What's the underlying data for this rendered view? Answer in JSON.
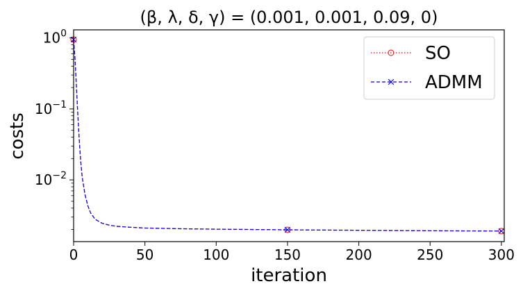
{
  "chart_data": {
    "type": "line",
    "title": "(β, λ, δ, γ) = (0.001, 0.001, 0.09, 0)",
    "xlabel": "iteration",
    "ylabel": "costs",
    "xlim": [
      0,
      302
    ],
    "ylim": [
      0.00135,
      1.3
    ],
    "yscale": "log",
    "grid": false,
    "legend_position": "top-right",
    "x_ticks": [
      0,
      50,
      100,
      150,
      200,
      250,
      300
    ],
    "x_tick_labels": [
      "0",
      "50",
      "100",
      "150",
      "200",
      "250",
      "300"
    ],
    "y_ticks": [
      1,
      0.1,
      0.01
    ],
    "y_tick_labels": [
      {
        "base": "10",
        "exp": "0"
      },
      {
        "base": "10",
        "exp": "−1"
      },
      {
        "base": "10",
        "exp": "−2"
      }
    ],
    "series": [
      {
        "name": "SO",
        "color": "#ff0000",
        "line_style": "dotted",
        "marker": "circle",
        "x": [
          0,
          1,
          2,
          3,
          4,
          5,
          6,
          8,
          10,
          12,
          15,
          20,
          25,
          30,
          40,
          50,
          75,
          100,
          150,
          200,
          250,
          300
        ],
        "y": [
          0.95,
          0.5,
          0.2,
          0.08,
          0.035,
          0.018,
          0.011,
          0.0062,
          0.0043,
          0.0034,
          0.0028,
          0.00245,
          0.0023,
          0.00222,
          0.00215,
          0.0021,
          0.00205,
          0.00202,
          0.00198,
          0.00195,
          0.00192,
          0.0019
        ],
        "marker_x": [
          0,
          150,
          300
        ]
      },
      {
        "name": "ADMM",
        "color": "#0000ff",
        "line_style": "dashed",
        "marker": "x",
        "x": [
          0,
          1,
          2,
          3,
          4,
          5,
          6,
          8,
          10,
          12,
          15,
          20,
          25,
          30,
          40,
          50,
          75,
          100,
          150,
          200,
          250,
          300
        ],
        "y": [
          0.95,
          0.5,
          0.2,
          0.08,
          0.035,
          0.018,
          0.011,
          0.0062,
          0.0043,
          0.0034,
          0.0028,
          0.00245,
          0.0023,
          0.00222,
          0.00215,
          0.0021,
          0.00205,
          0.00202,
          0.00198,
          0.00195,
          0.00192,
          0.0019
        ],
        "marker_x": [
          0,
          150,
          300
        ]
      }
    ]
  }
}
